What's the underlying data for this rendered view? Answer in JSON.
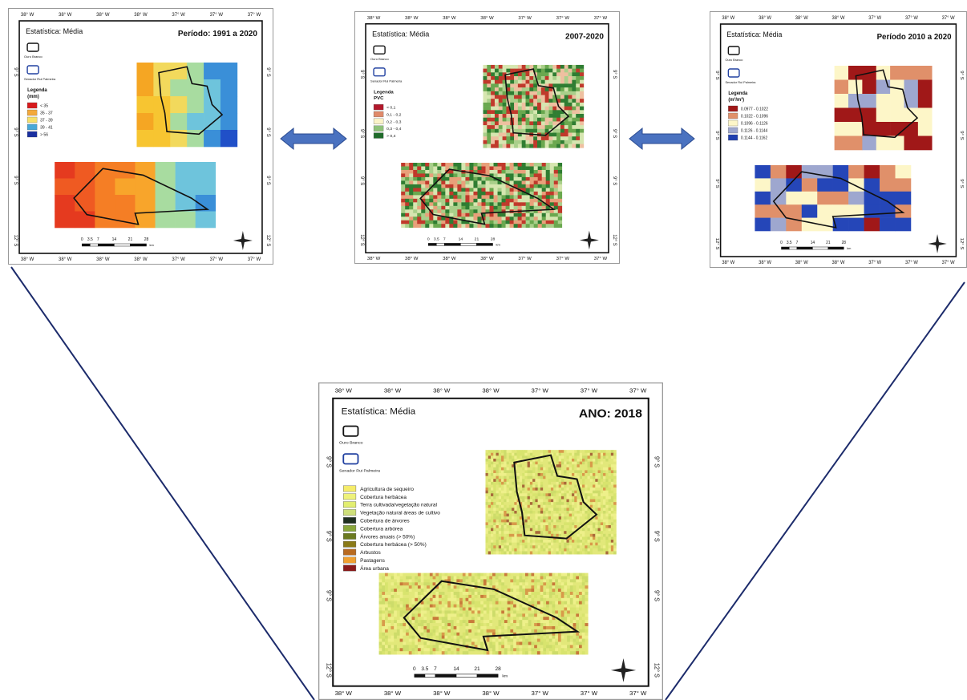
{
  "frame": {
    "x_ticks": [
      "38° W",
      "38° W",
      "38° W",
      "38° W",
      "37° W",
      "37° W",
      "37° W"
    ],
    "y_ticks": [
      "9° S",
      "9° S",
      "9° S",
      "12° S"
    ],
    "boundaries": [
      "Ouro Branco",
      "Senador Rui Palmeira"
    ],
    "scale": [
      "0",
      "3.5",
      "7",
      "14",
      "21",
      "28"
    ],
    "scale_unit": "km"
  },
  "maps": [
    {
      "statistic": "Estatística: Média",
      "period": "Período: 1991 a 2020",
      "legend_title": "Legenda",
      "legend_unit": "(mm)",
      "legend": [
        "< 35",
        "35 - 37",
        "37 - 39",
        "39 - 41",
        "> 56"
      ]
    },
    {
      "statistic": "Estatística: Média",
      "period": "2007-2020",
      "legend_title": "Legenda",
      "legend_unit": "PVC",
      "legend": [
        "< 0,1",
        "0,1 - 0,2",
        "0,2 - 0,3",
        "0,3 - 0,4",
        "> 0,4"
      ]
    },
    {
      "statistic": "Estatística: Média",
      "period": "Período 2010 a 2020",
      "legend_title": "Legenda",
      "legend_unit": "(m³/m³)",
      "legend": [
        "0.0977 - 0.1022",
        "0.1022 - 0.1096",
        "0.1096 - 0.1126",
        "0.1126 - 0.1144",
        "0.1144 - 0.1162"
      ]
    },
    {
      "statistic": "Estatística: Média",
      "period": "ANO: 2018",
      "legend": [
        "Agricultura de sequeiro",
        "Cobertura herbácea",
        "Terra cultivada/vegetação natural",
        "Vegetação natural áreas de cultivo",
        "Cobertura de árvores",
        "Cobertura arbórea",
        "Árvores anuais (> 50%)",
        "Cobertura herbácea (> 50%)",
        "Arbustos",
        "Pastagens",
        "Área urbana"
      ]
    }
  ]
}
